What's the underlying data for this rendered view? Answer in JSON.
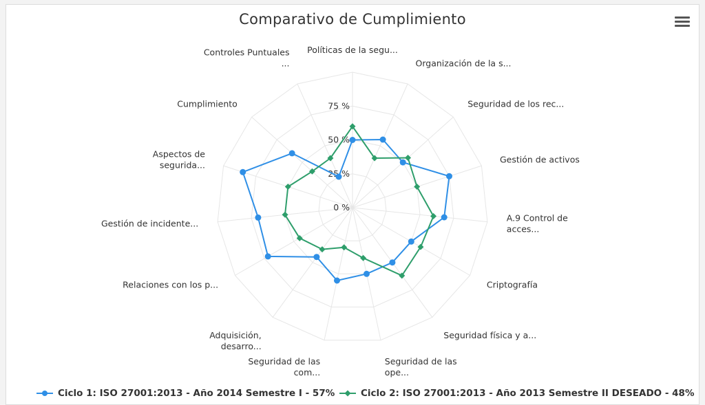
{
  "chart_data": {
    "type": "radar",
    "title": "Comparativo de Cumplimiento",
    "axes": [
      [
        "Políticas de la segu..."
      ],
      [
        "Organización de la s..."
      ],
      [
        "Seguridad de los rec..."
      ],
      [
        "Gestión de activos"
      ],
      [
        "A.9 Control de",
        "acces..."
      ],
      [
        "Criptografía"
      ],
      [
        "Seguridad física y a..."
      ],
      [
        "Seguridad de las",
        "ope..."
      ],
      [
        "Seguridad de las",
        "com..."
      ],
      [
        "Adquisición,",
        "desarro..."
      ],
      [
        "Relaciones con los p..."
      ],
      [
        "Gestión de incidente..."
      ],
      [
        "Aspectos de",
        "segurida..."
      ],
      [
        "Cumplimiento"
      ],
      [
        "Controles Puntuales",
        "..."
      ]
    ],
    "radial_ticks": [
      "0 %",
      "25 %",
      "50 %",
      "75 %"
    ],
    "rmax": 100,
    "series": [
      {
        "name": "Ciclo 1: ISO 27001:2013 - Año 2014 Semestre I - 57%",
        "color": "#2f8fe6",
        "marker": "circle",
        "values": [
          50,
          55,
          50,
          75,
          68,
          50,
          50,
          50,
          55,
          45,
          72,
          70,
          85,
          60,
          25
        ]
      },
      {
        "name": "Ciclo 2: ISO 27001:2013 - Año 2013 Semestre II DESEADO - 48%",
        "color": "#2e9e6b",
        "marker": "diamond",
        "values": [
          60,
          40,
          55,
          50,
          60,
          58,
          62,
          38,
          30,
          38,
          45,
          50,
          50,
          40,
          40
        ]
      }
    ]
  }
}
